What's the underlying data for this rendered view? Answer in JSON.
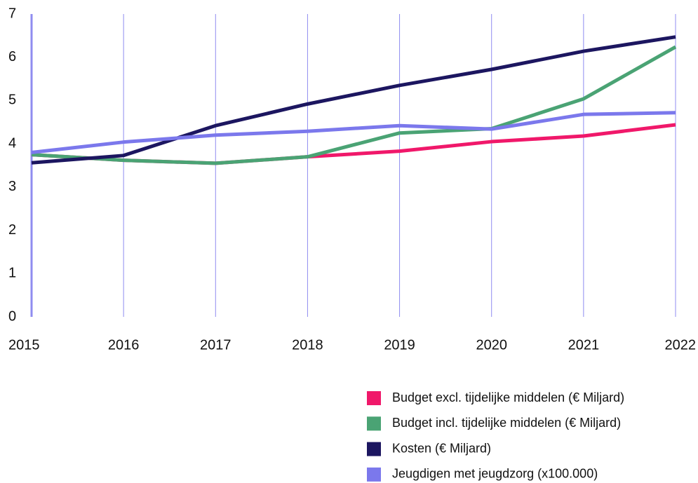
{
  "chart_data": {
    "type": "line",
    "categories": [
      "2015",
      "2016",
      "2017",
      "2018",
      "2019",
      "2020",
      "2021",
      "2022"
    ],
    "series": [
      {
        "name": "Budget excl. tijdelijke middelen (€ Miljard)",
        "color": "#f0186a",
        "values": [
          3.75,
          3.62,
          3.55,
          3.7,
          3.83,
          4.05,
          4.18,
          4.44
        ]
      },
      {
        "name": "Budget incl. tijdelijke middelen (€ Miljard)",
        "color": "#4aa374",
        "values": [
          3.75,
          3.62,
          3.55,
          3.7,
          4.25,
          4.35,
          5.04,
          6.24
        ]
      },
      {
        "name": "Kosten (€ Miljard)",
        "color": "#1c1660",
        "values": [
          3.56,
          3.73,
          4.42,
          4.92,
          5.35,
          5.72,
          6.14,
          6.47
        ]
      },
      {
        "name": "Jeugdigen met jeugdzorg (x100.000)",
        "color": "#7b78ec",
        "values": [
          3.8,
          4.04,
          4.2,
          4.29,
          4.42,
          4.34,
          4.68,
          4.72
        ]
      }
    ],
    "ylim": [
      0,
      7
    ],
    "yticks": [
      0,
      1,
      2,
      3,
      4,
      5,
      6,
      7
    ],
    "grid": true,
    "grid_color": "#8f8cf0",
    "legend": "bottom-right"
  }
}
